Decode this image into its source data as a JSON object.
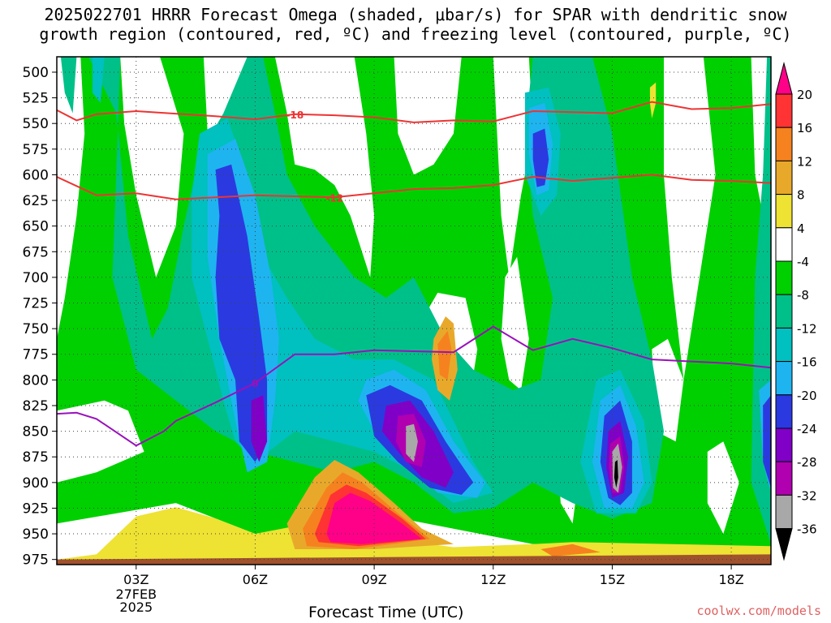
{
  "title_line1": "2025022701 HRRR Forecast Omega (shaded, μbar/s) for SPAR with dendritic snow",
  "title_line2": "growth region (contoured, red, ºC) and freezing level (contoured, purple, ºC)",
  "credit": "coolwx.com/models",
  "chart_data": {
    "type": "heatmap",
    "xlabel": "Forecast Time (UTC)",
    "x_ticks": [
      {
        "label": "03Z",
        "hour": 3
      },
      {
        "label": "06Z",
        "hour": 6
      },
      {
        "label": "09Z",
        "hour": 9
      },
      {
        "label": "12Z",
        "hour": 12
      },
      {
        "label": "15Z",
        "hour": 15
      },
      {
        "label": "18Z",
        "hour": 18
      }
    ],
    "x_range_hours": [
      1,
      19
    ],
    "date_label_line1": "27FEB",
    "date_label_line2": "2025",
    "y_ticks": [
      500,
      525,
      550,
      575,
      600,
      625,
      650,
      675,
      700,
      725,
      750,
      775,
      800,
      825,
      850,
      875,
      900,
      925,
      950,
      975
    ],
    "y_range_mb": [
      980,
      485
    ],
    "colorbar": {
      "labels": [
        "20",
        "16",
        "12",
        "8",
        "4",
        "-4",
        "-8",
        "-12",
        "-16",
        "-20",
        "-24",
        "-28",
        "-32",
        "-36"
      ],
      "bins": [
        {
          "color": "#ff0088"
        },
        {
          "color": "#ff3333"
        },
        {
          "color": "#f5821f"
        },
        {
          "color": "#e8a92b"
        },
        {
          "color": "#eee233"
        },
        {
          "color": "#ffffff"
        },
        {
          "color": "#00d000"
        },
        {
          "color": "#00c089"
        },
        {
          "color": "#00c0c0"
        },
        {
          "color": "#1eb4f0"
        },
        {
          "color": "#2a3ae0"
        },
        {
          "color": "#8000c8"
        },
        {
          "color": "#b000b0"
        },
        {
          "color": "#a8a8a8"
        },
        {
          "color": "#000000"
        }
      ]
    },
    "contours": [
      {
        "label": "-18",
        "color": "#ee3333",
        "points": [
          [
            1,
            537
          ],
          [
            1.5,
            547
          ],
          [
            2,
            541
          ],
          [
            3,
            538
          ],
          [
            5,
            543
          ],
          [
            6,
            546
          ],
          [
            7,
            541
          ],
          [
            8,
            542
          ],
          [
            9,
            544
          ],
          [
            10,
            549
          ],
          [
            11,
            547
          ],
          [
            12,
            548
          ],
          [
            13,
            538
          ],
          [
            14,
            539
          ],
          [
            15,
            540
          ],
          [
            16,
            529
          ],
          [
            17,
            536
          ],
          [
            18,
            535
          ],
          [
            19,
            531
          ]
        ]
      },
      {
        "label": "-12",
        "color": "#ee3333",
        "points": [
          [
            1,
            602
          ],
          [
            2,
            620
          ],
          [
            3,
            618
          ],
          [
            4,
            624
          ],
          [
            6,
            620
          ],
          [
            8,
            622
          ],
          [
            10,
            614
          ],
          [
            11,
            613
          ],
          [
            12,
            610
          ],
          [
            13,
            602
          ],
          [
            14,
            606
          ],
          [
            15,
            603
          ],
          [
            16,
            600
          ],
          [
            17,
            605
          ],
          [
            18,
            606
          ],
          [
            19,
            608
          ]
        ]
      },
      {
        "label": "0",
        "color": "#9911bb",
        "points": [
          [
            1,
            833
          ],
          [
            1.5,
            832
          ],
          [
            2,
            838
          ],
          [
            3,
            864
          ],
          [
            3.7,
            850
          ],
          [
            4,
            840
          ],
          [
            5,
            822
          ],
          [
            6,
            803
          ],
          [
            7,
            775
          ],
          [
            8,
            775
          ],
          [
            9,
            771
          ],
          [
            10,
            772
          ],
          [
            11,
            773
          ],
          [
            12,
            748
          ],
          [
            13,
            771
          ],
          [
            14,
            760
          ],
          [
            15,
            769
          ],
          [
            16,
            780
          ],
          [
            18,
            784
          ],
          [
            19,
            788
          ]
        ]
      }
    ],
    "ground_color": "#a0522d"
  }
}
